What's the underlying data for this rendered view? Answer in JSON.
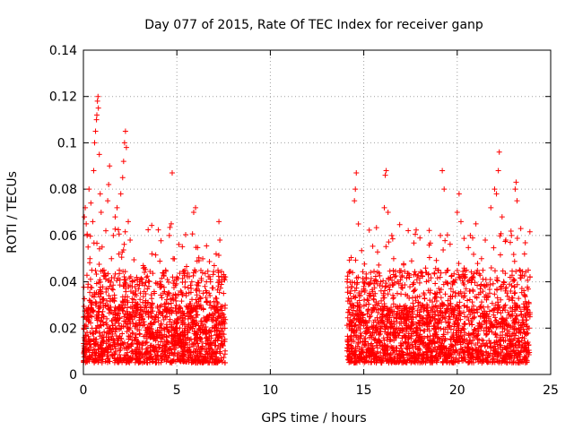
{
  "chart_data": {
    "type": "scatter",
    "title": "Day 077 of 2015, Rate Of TEC Index for receiver ganp",
    "xlabel": "GPS time / hours",
    "ylabel": "ROTI / TECUs",
    "xlim": [
      0,
      25
    ],
    "ylim": [
      0,
      0.14
    ],
    "xticks": [
      0,
      5,
      10,
      15,
      20,
      25
    ],
    "xtick_labels": [
      "0",
      "5",
      "10",
      "15",
      "20",
      "25"
    ],
    "yticks": [
      0,
      0.02,
      0.04,
      0.06,
      0.08,
      0.1,
      0.12,
      0.14
    ],
    "ytick_labels": [
      "0",
      "0.02",
      "0.04",
      "0.06",
      "0.08",
      "0.1",
      "0.12",
      "0.14"
    ],
    "grid": true,
    "marker": "+",
    "color": "#ff0000",
    "series": [
      {
        "name": "ROTI",
        "segments": [
          {
            "time_range_hours": [
              0.0,
              7.6
            ],
            "typical_range": [
              0.005,
              0.03
            ],
            "points": [
              [
                0.05,
                0.068
              ],
              [
                0.1,
                0.072
              ],
              [
                0.15,
                0.065
              ],
              [
                0.2,
                0.06
              ],
              [
                0.25,
                0.055
              ],
              [
                0.3,
                0.08
              ],
              [
                0.35,
                0.05
              ],
              [
                0.4,
                0.074
              ],
              [
                0.45,
                0.045
              ],
              [
                0.5,
                0.066
              ],
              [
                0.55,
                0.088
              ],
              [
                0.6,
                0.1
              ],
              [
                0.65,
                0.105
              ],
              [
                0.7,
                0.11
              ],
              [
                0.72,
                0.112
              ],
              [
                0.75,
                0.118
              ],
              [
                0.78,
                0.12
              ],
              [
                0.8,
                0.115
              ],
              [
                0.85,
                0.095
              ],
              [
                0.9,
                0.078
              ],
              [
                0.95,
                0.07
              ],
              [
                1.0,
                0.055
              ],
              [
                1.1,
                0.045
              ],
              [
                1.2,
                0.062
              ],
              [
                1.3,
                0.075
              ],
              [
                1.35,
                0.082
              ],
              [
                1.4,
                0.09
              ],
              [
                1.5,
                0.05
              ],
              [
                1.6,
                0.06
              ],
              [
                1.7,
                0.068
              ],
              [
                1.8,
                0.072
              ],
              [
                1.9,
                0.052
              ],
              [
                2.0,
                0.078
              ],
              [
                2.1,
                0.085
              ],
              [
                2.15,
                0.092
              ],
              [
                2.2,
                0.1
              ],
              [
                2.25,
                0.105
              ],
              [
                2.3,
                0.098
              ],
              [
                2.4,
                0.066
              ],
              [
                2.5,
                0.058
              ],
              [
                2.6,
                0.04
              ],
              [
                2.8,
                0.036
              ],
              [
                3.0,
                0.04
              ],
              [
                3.2,
                0.047
              ],
              [
                3.5,
                0.038
              ],
              [
                3.8,
                0.035
              ],
              [
                4.1,
                0.04
              ],
              [
                4.4,
                0.045
              ],
              [
                4.6,
                0.06
              ],
              [
                4.7,
                0.065
              ],
              [
                4.75,
                0.087
              ],
              [
                4.8,
                0.05
              ],
              [
                5.0,
                0.042
              ],
              [
                5.2,
                0.036
              ],
              [
                5.5,
                0.034
              ],
              [
                5.8,
                0.04
              ],
              [
                5.9,
                0.07
              ],
              [
                6.0,
                0.072
              ],
              [
                6.2,
                0.036
              ],
              [
                6.5,
                0.038
              ],
              [
                6.8,
                0.04
              ],
              [
                7.0,
                0.047
              ],
              [
                7.1,
                0.052
              ],
              [
                7.2,
                0.045
              ],
              [
                7.25,
                0.066
              ],
              [
                7.3,
                0.058
              ],
              [
                7.4,
                0.04
              ],
              [
                7.5,
                0.035
              ]
            ]
          },
          {
            "time_range_hours": [
              14.1,
              23.9
            ],
            "typical_range": [
              0.005,
              0.03
            ],
            "points": [
              [
                14.2,
                0.028
              ],
              [
                14.3,
                0.036
              ],
              [
                14.4,
                0.044
              ],
              [
                14.5,
                0.075
              ],
              [
                14.55,
                0.08
              ],
              [
                14.6,
                0.087
              ],
              [
                14.7,
                0.042
              ],
              [
                15.0,
                0.038
              ],
              [
                15.3,
                0.035
              ],
              [
                15.6,
                0.03
              ],
              [
                15.9,
                0.04
              ],
              [
                16.1,
                0.072
              ],
              [
                16.15,
                0.086
              ],
              [
                16.2,
                0.088
              ],
              [
                16.3,
                0.07
              ],
              [
                16.5,
                0.06
              ],
              [
                16.6,
                0.05
              ],
              [
                16.8,
                0.04
              ],
              [
                17.2,
                0.024
              ],
              [
                17.6,
                0.022
              ],
              [
                18.0,
                0.022
              ],
              [
                18.5,
                0.026
              ],
              [
                18.8,
                0.035
              ],
              [
                19.0,
                0.045
              ],
              [
                19.1,
                0.06
              ],
              [
                19.2,
                0.088
              ],
              [
                19.3,
                0.08
              ],
              [
                19.5,
                0.045
              ],
              [
                19.8,
                0.04
              ],
              [
                20.0,
                0.07
              ],
              [
                20.1,
                0.078
              ],
              [
                20.2,
                0.066
              ],
              [
                20.5,
                0.045
              ],
              [
                20.7,
                0.06
              ],
              [
                21.0,
                0.065
              ],
              [
                21.3,
                0.05
              ],
              [
                21.5,
                0.058
              ],
              [
                21.8,
                0.072
              ],
              [
                22.0,
                0.08
              ],
              [
                22.1,
                0.078
              ],
              [
                22.2,
                0.088
              ],
              [
                22.25,
                0.096
              ],
              [
                22.4,
                0.068
              ],
              [
                22.6,
                0.058
              ],
              [
                22.9,
                0.06
              ],
              [
                23.1,
                0.08
              ],
              [
                23.15,
                0.083
              ],
              [
                23.2,
                0.075
              ],
              [
                23.4,
                0.063
              ],
              [
                23.6,
                0.052
              ],
              [
                23.8,
                0.045
              ]
            ]
          }
        ]
      }
    ]
  }
}
